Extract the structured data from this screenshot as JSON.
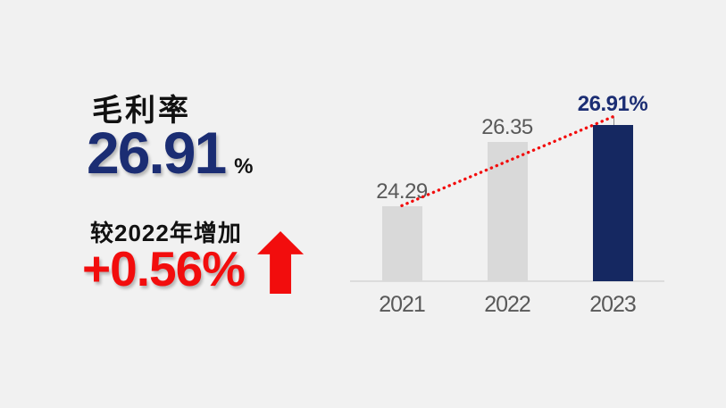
{
  "slide": {
    "title": "毛利率",
    "headline_value": "26.91",
    "headline_unit": "%",
    "delta_label": "较2022年增加",
    "delta_value": "+0.56%",
    "arrow_icon": "up-arrow"
  },
  "colors": {
    "background": "#f1f1f1",
    "navy_text": "#1b2d73",
    "navy_bar": "#152861",
    "red": "#f20d0d",
    "bar_gray": "#d9d9d9",
    "label_gray": "#595959",
    "axis_line": "#dcdcdc",
    "leader_tick": "#8a8a8a",
    "text_black": "#111111"
  },
  "chart_data": {
    "type": "bar",
    "title": "",
    "xlabel": "",
    "ylabel": "",
    "categories": [
      "2021",
      "2022",
      "2023"
    ],
    "values": [
      24.29,
      26.35,
      26.91
    ],
    "data_labels": [
      "24.29",
      "26.35",
      "26.91%"
    ],
    "highlight_index": 2,
    "ylim": [
      21.9,
      27.6
    ],
    "grid": false,
    "legend": false,
    "trend_line": {
      "style": "dotted",
      "color": "#f20d0d",
      "from": {
        "category": "2021",
        "value": 24.29
      },
      "to": {
        "category": "2023",
        "value": 26.91
      }
    }
  }
}
